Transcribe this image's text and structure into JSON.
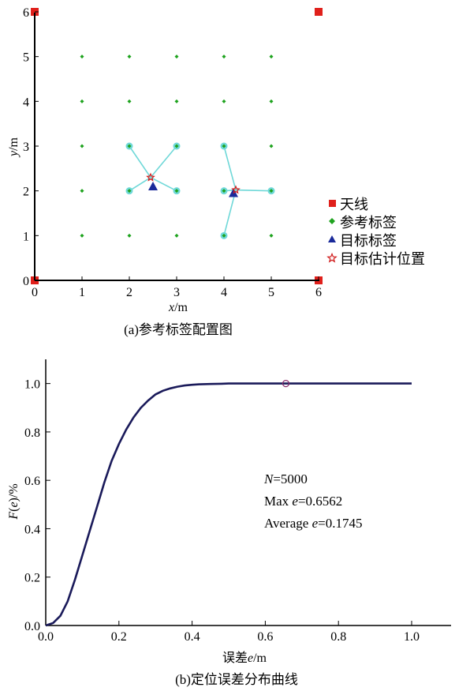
{
  "chart_data": [
    {
      "type": "scatter",
      "caption": "(a)参考标签配置图",
      "xlabel": {
        "var": "x",
        "unit": "/m"
      },
      "ylabel": {
        "var": "y",
        "unit": "/m"
      },
      "xlim": [
        0,
        6
      ],
      "ylim": [
        0,
        6
      ],
      "xticks": [
        0,
        1,
        2,
        3,
        4,
        5,
        6
      ],
      "yticks": [
        0,
        1,
        2,
        3,
        4,
        5,
        6
      ],
      "grid": false,
      "legend_position": "right",
      "legend": [
        "天线",
        "参考标签",
        "目标标签",
        "目标估计位置"
      ],
      "colors": {
        "antenna": "#e0201b",
        "reference": "#1fa31f",
        "target": "#1a2a9a",
        "estimate": "#d01818",
        "link": "#6fd8d8"
      },
      "antennas": [
        [
          0,
          6
        ],
        [
          6,
          6
        ],
        [
          0,
          0
        ],
        [
          6,
          0
        ]
      ],
      "reference_tags": [
        [
          1,
          1
        ],
        [
          1,
          2
        ],
        [
          1,
          3
        ],
        [
          1,
          4
        ],
        [
          1,
          5
        ],
        [
          2,
          1
        ],
        [
          2,
          2
        ],
        [
          2,
          3
        ],
        [
          2,
          4
        ],
        [
          2,
          5
        ],
        [
          3,
          1
        ],
        [
          3,
          2
        ],
        [
          3,
          3
        ],
        [
          3,
          4
        ],
        [
          3,
          5
        ],
        [
          4,
          1
        ],
        [
          4,
          2
        ],
        [
          4,
          3
        ],
        [
          4,
          4
        ],
        [
          4,
          5
        ],
        [
          5,
          1
        ],
        [
          5,
          2
        ],
        [
          5,
          3
        ],
        [
          5,
          4
        ],
        [
          5,
          5
        ]
      ],
      "targets": [
        {
          "true": [
            2.5,
            2.1
          ],
          "estimate": [
            2.45,
            2.3
          ],
          "neighbors": [
            [
              2,
              3
            ],
            [
              3,
              3
            ],
            [
              2,
              2
            ],
            [
              3,
              2
            ]
          ]
        },
        {
          "true": [
            4.2,
            1.95
          ],
          "estimate": [
            4.25,
            2.02
          ],
          "neighbors": [
            [
              4,
              3
            ],
            [
              4,
              2
            ],
            [
              5,
              2
            ],
            [
              4,
              1
            ]
          ]
        }
      ]
    },
    {
      "type": "line",
      "caption": "(b)定位误差分布曲线",
      "xlabel": {
        "prefix": "误差",
        "var": "e",
        "unit": "/m"
      },
      "ylabel": {
        "prefix": "F",
        "arg": "e",
        "unit": "/%"
      },
      "xlim": [
        0,
        1.0
      ],
      "ylim": [
        0,
        1.1
      ],
      "xticks": [
        "0.0",
        "0.2",
        "0.4",
        "0.6",
        "0.8",
        "1.0"
      ],
      "yticks": [
        "0.0",
        "0.2",
        "0.4",
        "0.6",
        "0.8",
        "1.0"
      ],
      "grid": false,
      "series": [
        {
          "x": [
            0,
            0.02,
            0.04,
            0.06,
            0.08,
            0.1,
            0.12,
            0.14,
            0.16,
            0.18,
            0.2,
            0.22,
            0.24,
            0.26,
            0.28,
            0.3,
            0.32,
            0.34,
            0.36,
            0.38,
            0.4,
            0.42,
            0.45,
            0.48,
            0.5,
            0.55,
            0.6,
            0.6562,
            0.7,
            0.8,
            0.9,
            1.0
          ],
          "y": [
            0,
            0.01,
            0.04,
            0.1,
            0.19,
            0.29,
            0.39,
            0.49,
            0.59,
            0.68,
            0.75,
            0.81,
            0.86,
            0.9,
            0.93,
            0.955,
            0.97,
            0.98,
            0.987,
            0.992,
            0.995,
            0.997,
            0.998,
            0.999,
            1.0,
            1.0,
            1.0,
            1.0,
            1.0,
            1.0,
            1.0,
            1.0
          ]
        }
      ],
      "max_marker": [
        0.6562,
        1.0
      ],
      "annotations": [
        {
          "var": "N",
          "text": "=5000"
        },
        {
          "prefix": "Max ",
          "var": "e",
          "text": "=0.6562"
        },
        {
          "prefix": "Average ",
          "var": "e",
          "text": "=0.1745"
        }
      ]
    }
  ]
}
